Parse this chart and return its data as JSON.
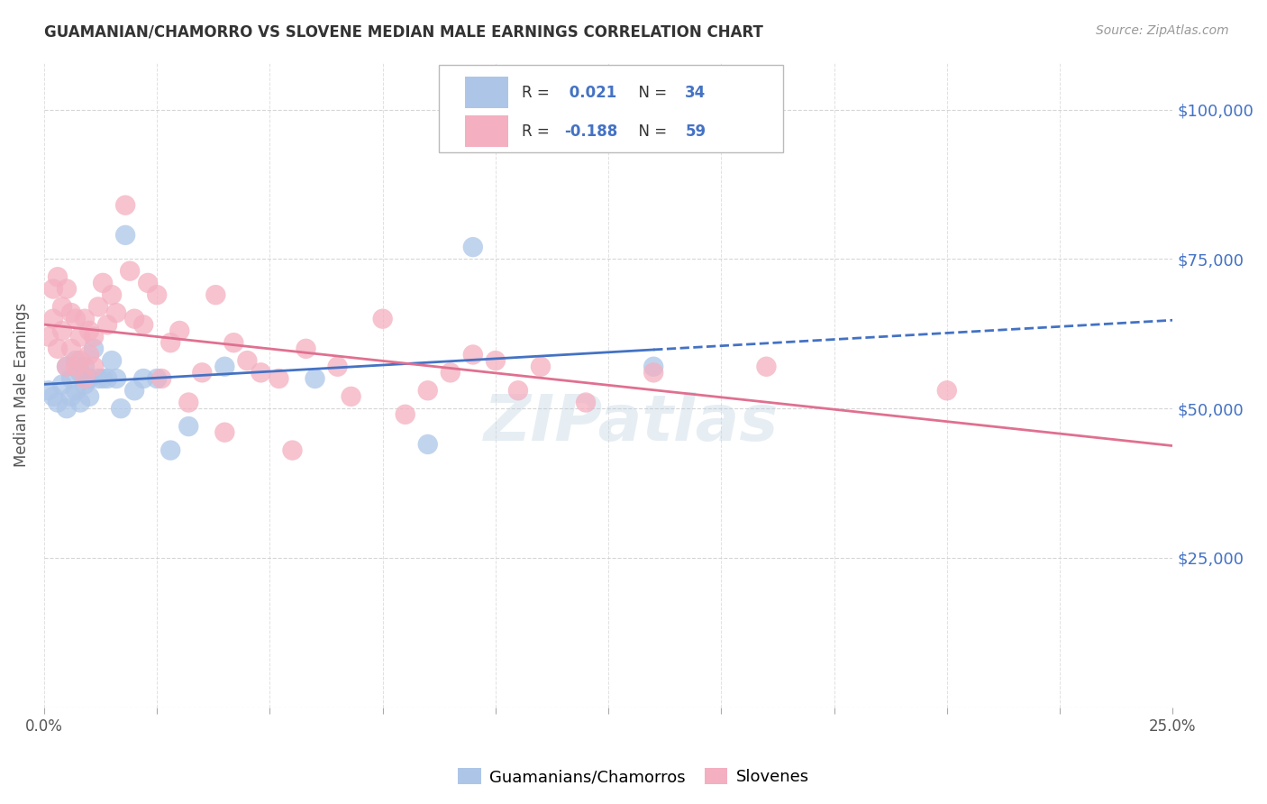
{
  "title": "GUAMANIAN/CHAMORRO VS SLOVENE MEDIAN MALE EARNINGS CORRELATION CHART",
  "source": "Source: ZipAtlas.com",
  "ylabel": "Median Male Earnings",
  "y_ticks": [
    0,
    25000,
    50000,
    75000,
    100000
  ],
  "y_tick_labels": [
    "",
    "$25,000",
    "$50,000",
    "$75,000",
    "$100,000"
  ],
  "x_range": [
    0.0,
    0.25
  ],
  "y_range": [
    0,
    108000
  ],
  "blue_R": 0.021,
  "blue_N": 34,
  "pink_R": -0.188,
  "pink_N": 59,
  "blue_color": "#adc6e8",
  "blue_line_color": "#4472c4",
  "pink_color": "#f4afc0",
  "pink_line_color": "#e07090",
  "blue_points_x": [
    0.001,
    0.002,
    0.003,
    0.004,
    0.005,
    0.005,
    0.006,
    0.006,
    0.007,
    0.007,
    0.008,
    0.008,
    0.009,
    0.009,
    0.01,
    0.01,
    0.011,
    0.012,
    0.013,
    0.014,
    0.015,
    0.016,
    0.017,
    0.018,
    0.02,
    0.022,
    0.025,
    0.028,
    0.032,
    0.04,
    0.06,
    0.085,
    0.095,
    0.135
  ],
  "blue_points_y": [
    53000,
    52000,
    51000,
    54000,
    57000,
    50000,
    55000,
    52000,
    58000,
    53000,
    56000,
    51000,
    54000,
    57000,
    55000,
    52000,
    60000,
    55000,
    55000,
    55000,
    58000,
    55000,
    50000,
    79000,
    53000,
    55000,
    55000,
    43000,
    47000,
    57000,
    55000,
    44000,
    77000,
    57000
  ],
  "pink_points_x": [
    0.001,
    0.002,
    0.002,
    0.003,
    0.003,
    0.004,
    0.004,
    0.005,
    0.005,
    0.006,
    0.006,
    0.007,
    0.007,
    0.008,
    0.008,
    0.009,
    0.009,
    0.01,
    0.01,
    0.011,
    0.011,
    0.012,
    0.013,
    0.014,
    0.015,
    0.016,
    0.018,
    0.019,
    0.02,
    0.022,
    0.023,
    0.025,
    0.026,
    0.028,
    0.03,
    0.032,
    0.035,
    0.038,
    0.04,
    0.042,
    0.045,
    0.048,
    0.052,
    0.055,
    0.058,
    0.065,
    0.068,
    0.075,
    0.08,
    0.085,
    0.09,
    0.095,
    0.1,
    0.105,
    0.11,
    0.12,
    0.135,
    0.16,
    0.2
  ],
  "pink_points_y": [
    62000,
    65000,
    70000,
    60000,
    72000,
    67000,
    63000,
    70000,
    57000,
    66000,
    60000,
    65000,
    57000,
    62000,
    58000,
    65000,
    55000,
    63000,
    59000,
    62000,
    57000,
    67000,
    71000,
    64000,
    69000,
    66000,
    84000,
    73000,
    65000,
    64000,
    71000,
    69000,
    55000,
    61000,
    63000,
    51000,
    56000,
    69000,
    46000,
    61000,
    58000,
    56000,
    55000,
    43000,
    60000,
    57000,
    52000,
    65000,
    49000,
    53000,
    56000,
    59000,
    58000,
    53000,
    57000,
    51000,
    56000,
    57000,
    53000
  ],
  "watermark": "ZIPatlas",
  "legend_blue_label": "Guamanians/Chamorros",
  "legend_pink_label": "Slovenes",
  "background_color": "#ffffff",
  "grid_color": "#cccccc"
}
